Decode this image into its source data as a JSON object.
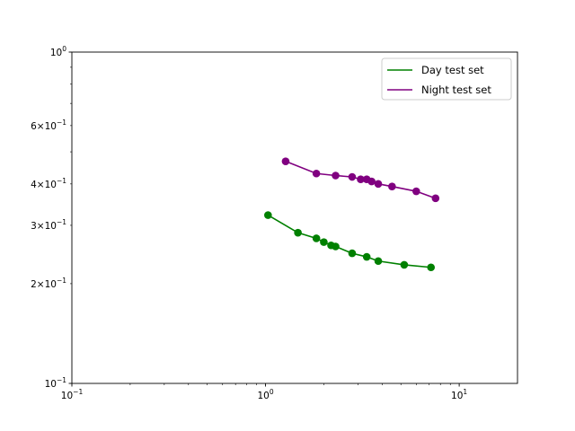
{
  "chart_data": {
    "type": "line",
    "title": "",
    "xlabel": "",
    "ylabel": "",
    "xscale": "log",
    "yscale": "log",
    "xlim": [
      0.1,
      20
    ],
    "ylim": [
      0.1,
      1.0
    ],
    "grid": false,
    "legend_placement": "top-right",
    "x_tick_labels": [
      {
        "value": 0.1,
        "base": "10",
        "exp": "−1"
      },
      {
        "value": 1,
        "base": "10",
        "exp": "0"
      },
      {
        "value": 10,
        "base": "10",
        "exp": "1"
      }
    ],
    "y_tick_labels": [
      {
        "value": 0.1,
        "mant": "",
        "base": "10",
        "exp": "−1"
      },
      {
        "value": 0.2,
        "mant": "2×",
        "base": "10",
        "exp": "−1"
      },
      {
        "value": 0.3,
        "mant": "3×",
        "base": "10",
        "exp": "−1"
      },
      {
        "value": 0.4,
        "mant": "4×",
        "base": "10",
        "exp": "−1"
      },
      {
        "value": 0.6,
        "mant": "6×",
        "base": "10",
        "exp": "−1"
      },
      {
        "value": 1.0,
        "mant": "",
        "base": "10",
        "exp": "0"
      }
    ],
    "series": [
      {
        "name": "Day test set",
        "color": "#008000",
        "x": [
          1.03,
          1.47,
          1.83,
          2.0,
          2.18,
          2.3,
          2.8,
          3.33,
          3.82,
          5.2,
          7.15
        ],
        "y": [
          0.322,
          0.285,
          0.274,
          0.267,
          0.261,
          0.259,
          0.247,
          0.241,
          0.234,
          0.228,
          0.224
        ]
      },
      {
        "name": "Night test set",
        "color": "#800080",
        "x": [
          1.27,
          1.83,
          2.3,
          2.8,
          3.1,
          3.33,
          3.53,
          3.82,
          4.5,
          6.0,
          7.55
        ],
        "y": [
          0.468,
          0.43,
          0.424,
          0.42,
          0.413,
          0.413,
          0.407,
          0.4,
          0.393,
          0.38,
          0.362
        ]
      }
    ]
  }
}
